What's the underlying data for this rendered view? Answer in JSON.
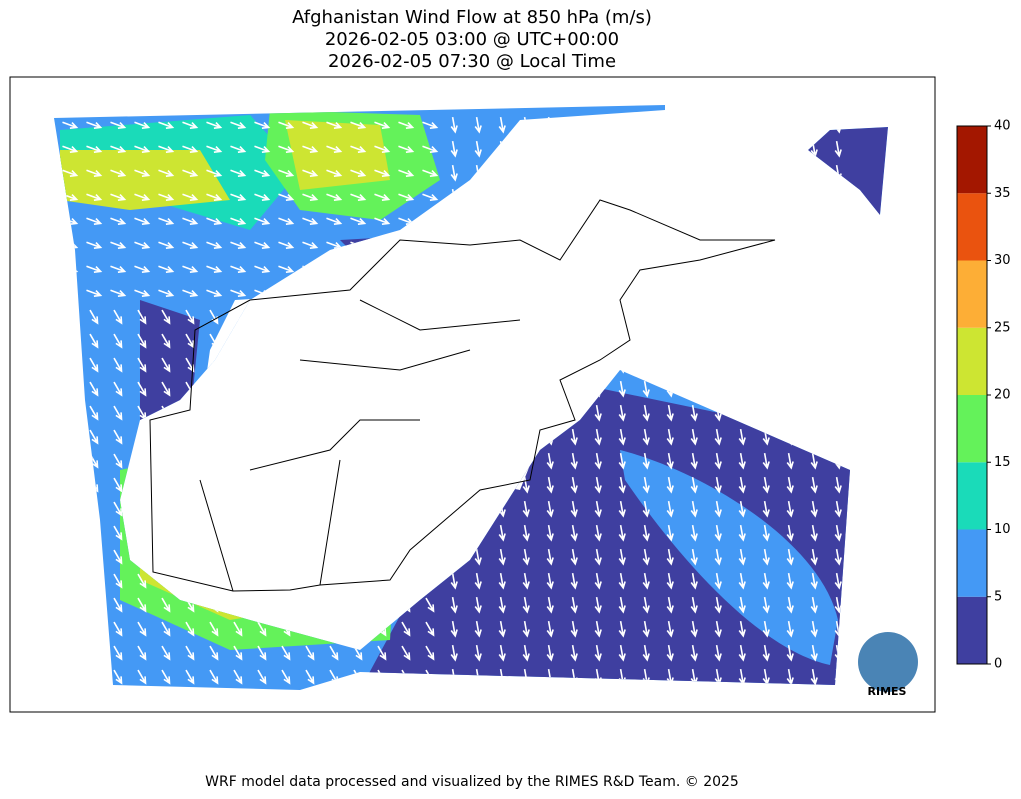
{
  "title": [
    "Afghanistan Wind Flow at 850 hPa (m/s)",
    "2026-02-05 03:00 @ UTC+00:00",
    "2026-02-05 07:30 @ Local Time"
  ],
  "colorbar": {
    "ticks": [
      0,
      5,
      10,
      15,
      20,
      25,
      30,
      35,
      40
    ],
    "colors": [
      "#3f3fa0",
      "#4499f5",
      "#1adbb9",
      "#64f25a",
      "#cde532",
      "#fdae36",
      "#ea530f",
      "#a31700"
    ]
  },
  "logo": "RIMES",
  "footer": "WRF model data processed and visualized by the RIMES R&D Team. © 2025"
}
